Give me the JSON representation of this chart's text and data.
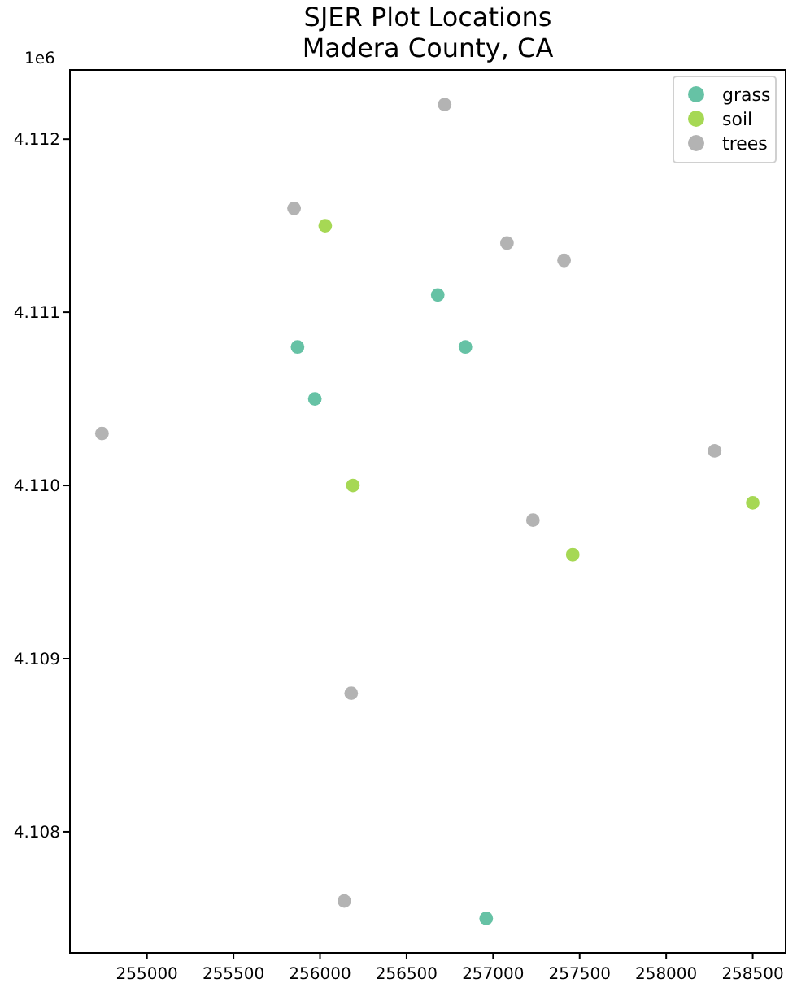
{
  "chart_data": {
    "type": "scatter",
    "title": "SJER Plot Locations\nMadera County, CA",
    "ylabel": "1e6",
    "xlim": [
      254555,
      258690
    ],
    "xticks": [
      255000,
      255500,
      256000,
      256500,
      257000,
      257500,
      258000,
      258500
    ],
    "ylim": [
      4.1073,
      4.1124
    ],
    "yticks": [
      4.108,
      4.109,
      {
        "value": 4.11,
        "label": "4.110"
      },
      4.111,
      4.112
    ],
    "grid": false,
    "legend": "top right",
    "marker": "circle",
    "series": [
      {
        "name": "grass",
        "color": "#66c2a5",
        "x": [
          256680,
          256840,
          255870,
          255970,
          256960
        ],
        "values": [
          4.1111,
          4.1108,
          4.1108,
          4.1105,
          4.1075
        ]
      },
      {
        "name": "soil",
        "color": "#a6d854",
        "x": [
          256030,
          256190,
          258500,
          257460
        ],
        "values": [
          4.1115,
          4.11,
          4.1099,
          4.1096
        ]
      },
      {
        "name": "trees",
        "color": "#b3b3b3",
        "x": [
          256720,
          255850,
          257080,
          257410,
          254740,
          258280,
          257230,
          256180,
          256140
        ],
        "values": [
          4.1122,
          4.1116,
          4.1114,
          4.1113,
          4.1103,
          4.1102,
          4.1098,
          4.1088,
          4.1076
        ]
      }
    ]
  }
}
